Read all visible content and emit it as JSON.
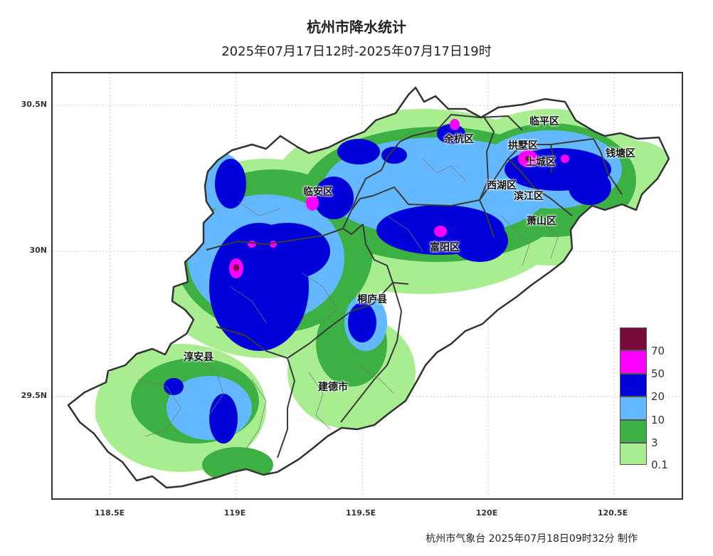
{
  "title": "杭州市降水统计",
  "subtitle": "2025年07月17日12时-2025年07月17日19时",
  "footer": "杭州市气象台 2025年07月18日09时32分 制作",
  "axes": {
    "y_ticks": [
      "30.5N",
      "30N",
      "29.5N"
    ],
    "x_ticks": [
      "118.5E",
      "119E",
      "119.5E",
      "120E",
      "120.5E"
    ]
  },
  "regions": {
    "linping": "临平区",
    "yuhang": "余杭区",
    "gongshu": "拱墅区",
    "qiantang": "钱塘区",
    "shangcheng": "上城区",
    "linan": "临安区",
    "xihu": "西湖区",
    "binjiang": "滨江区",
    "xiaoshan": "萧山区",
    "fuyang": "富阳区",
    "tonglu": "桐庐县",
    "chunan": "淳安县",
    "jiande": "建德市"
  },
  "legend": {
    "labels": [
      "70",
      "50",
      "20",
      "10",
      "3",
      "0.1"
    ],
    "colors": [
      "#7b0a3c",
      "#ff00ff",
      "#0000d8",
      "#63b8ff",
      "#3cb043",
      "#a8ee90"
    ]
  },
  "colors": {
    "frame": "#333333",
    "boundary": "#3a3a3a",
    "grid": "#c8c8c8"
  }
}
